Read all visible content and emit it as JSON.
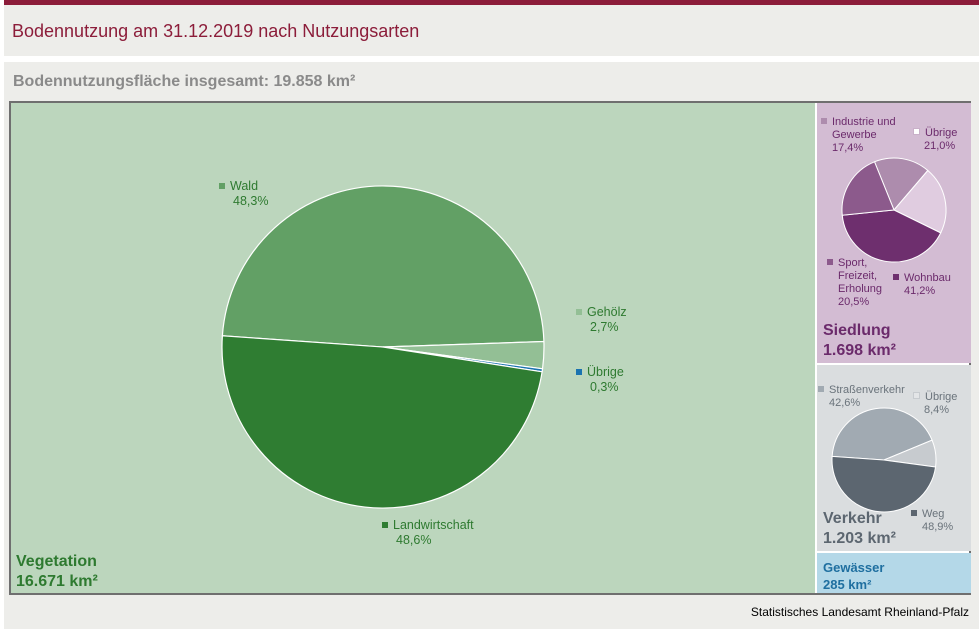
{
  "header": {
    "title": "Bodennutzung am 31.12.2019 nach Nutzungsarten",
    "subtitle": "Bodennutzungsfläche insgesamt: 19.858 km²"
  },
  "colors": {
    "brand": "#8c1d3a",
    "vegetation_bg": "#bcd6bd",
    "siedlung_bg": "#d3bcd3",
    "verkehr_bg": "#dadddf",
    "gewaesser_bg": "#b4d8e8"
  },
  "panels": {
    "vegetation": {
      "name": "Vegetation",
      "area": "16.671 km²"
    },
    "siedlung": {
      "name": "Siedlung",
      "area": "1.698 km²"
    },
    "verkehr": {
      "name": "Verkehr",
      "area": "1.203 km²"
    },
    "gewaesser": {
      "name": "Gewässer",
      "area": "285 km²"
    }
  },
  "chart_data": [
    {
      "type": "pie",
      "group": "Vegetation",
      "start_angle_deg": 176,
      "slices": [
        {
          "label": "Wald",
          "value": 48.3,
          "pct": "48,3%",
          "color": "#62a065",
          "text_color": "#2e7a30"
        },
        {
          "label": "Gehölz",
          "value": 2.7,
          "pct": "2,7%",
          "color": "#93bf95",
          "text_color": "#2e7a30"
        },
        {
          "label": "Übrige",
          "value": 0.3,
          "pct": "0,3%",
          "color": "#1a73b0",
          "text_color": "#2e7a30"
        },
        {
          "label": "Landwirtschaft",
          "value": 48.6,
          "pct": "48,6%",
          "color": "#2f7d32",
          "text_color": "#2e7a30"
        }
      ]
    },
    {
      "type": "pie",
      "group": "Siedlung",
      "start_angle_deg": 112,
      "slices": [
        {
          "label": "Industrie und Gewerbe",
          "label_lines": [
            "Industrie und",
            "Gewerbe"
          ],
          "value": 17.4,
          "pct": "17,4%",
          "color": "#ad8cad",
          "text_color": "#6b2a6b"
        },
        {
          "label": "Übrige",
          "label_lines": [
            "Übrige"
          ],
          "value": 21.0,
          "pct": "21,0%",
          "color": "#e0cce0",
          "text_color": "#6b2a6b"
        },
        {
          "label": "Wohnbau",
          "label_lines": [
            "Wohnbau"
          ],
          "value": 41.2,
          "pct": "41,2%",
          "color": "#6e2f6e",
          "text_color": "#6b2a6b"
        },
        {
          "label": "Sport, Freizeit, Erholung",
          "label_lines": [
            "Sport,",
            "Freizeit,",
            "Erholung"
          ],
          "value": 20.5,
          "pct": "20,5%",
          "color": "#8c5a8c",
          "text_color": "#6b2a6b"
        }
      ]
    },
    {
      "type": "pie",
      "group": "Verkehr",
      "start_angle_deg": 176,
      "slices": [
        {
          "label": "Straßenverkehr",
          "value": 42.6,
          "pct": "42,6%",
          "color": "#a1aab2",
          "text_color": "#6a737b"
        },
        {
          "label": "Übrige",
          "value": 8.4,
          "pct": "8,4%",
          "color": "#c7cbcf",
          "text_color": "#6a737b"
        },
        {
          "label": "Weg",
          "value": 48.9,
          "pct": "48,9%",
          "color": "#5c6670",
          "text_color": "#6a737b"
        }
      ]
    }
  ],
  "footer": {
    "source": "Statistisches Landesamt Rheinland-Pfalz"
  }
}
